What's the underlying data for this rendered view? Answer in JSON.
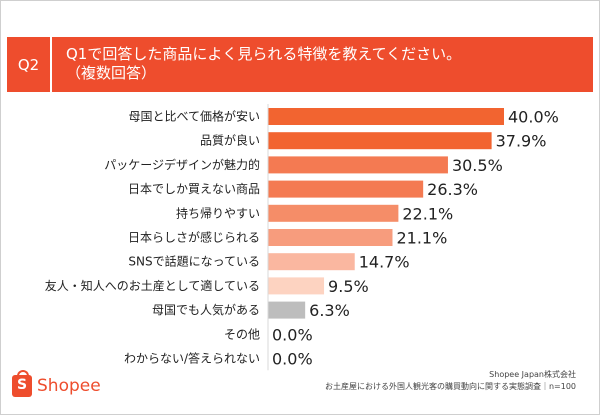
{
  "header": {
    "badge": "Q2",
    "title_line1": "Q1で回答した商品によく見られる特徴を教えてください。",
    "title_line2": "（複数回答）"
  },
  "colors": {
    "accent": "#ee4d2d",
    "bar_gradient": [
      "#f26430",
      "#f26430",
      "#f47a52",
      "#f47a52",
      "#f58d68",
      "#f79c7d",
      "#fab7a0",
      "#fdd3c1",
      "#bdbdbd",
      "#f7f7f7",
      "#f7f7f7"
    ]
  },
  "chart_data": {
    "type": "bar",
    "orientation": "horizontal",
    "unit": "%",
    "xlim": [
      0,
      40
    ],
    "categories": [
      "母国と比べて価格が安い",
      "品質が良い",
      "パッケージデザインが魅力的",
      "日本でしか買えない商品",
      "持ち帰りやすい",
      "日本らしさが感じられる",
      "SNSで話題になっている",
      "友人・知人へのお土産として適している",
      "母国でも人気がある",
      "その他",
      "わからない/答えられない"
    ],
    "values": [
      40.0,
      37.9,
      30.5,
      26.3,
      22.1,
      21.1,
      14.7,
      9.5,
      6.3,
      0.0,
      0.0
    ],
    "value_labels": [
      "40.0%",
      "37.9%",
      "30.5%",
      "26.3%",
      "22.1%",
      "21.1%",
      "14.7%",
      "9.5%",
      "6.3%",
      "0.0%",
      "0.0%"
    ]
  },
  "footer": {
    "company": "Shopee Japan株式会社",
    "survey": "お土産屋における外国人観光客の購買動向に関する実態調査｜n=100"
  },
  "logo": {
    "glyph": "S",
    "text": "Shopee",
    "icon": "shopping-bag-icon"
  }
}
